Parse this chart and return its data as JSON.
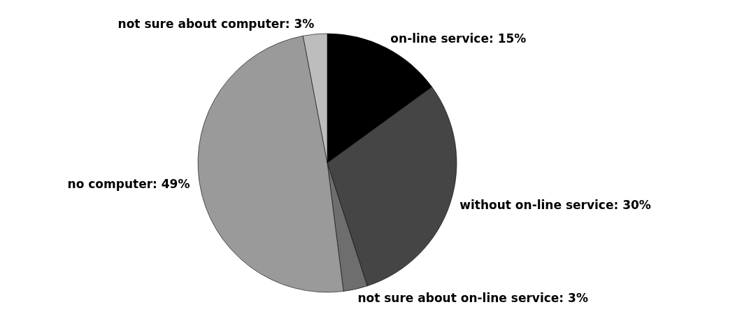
{
  "chart_data": {
    "type": "pie",
    "categories": [
      "on-line service",
      "without on-line service",
      "not sure about on-line service",
      "no computer",
      "not sure about computer"
    ],
    "values": [
      15,
      30,
      3,
      49,
      3
    ],
    "colors": [
      "#000000",
      "#454545",
      "#6e6e6e",
      "#9a9a9a",
      "#bdbdbd"
    ],
    "value_labels": [
      "15%",
      "30%",
      "3%",
      "49%",
      "3%"
    ]
  }
}
